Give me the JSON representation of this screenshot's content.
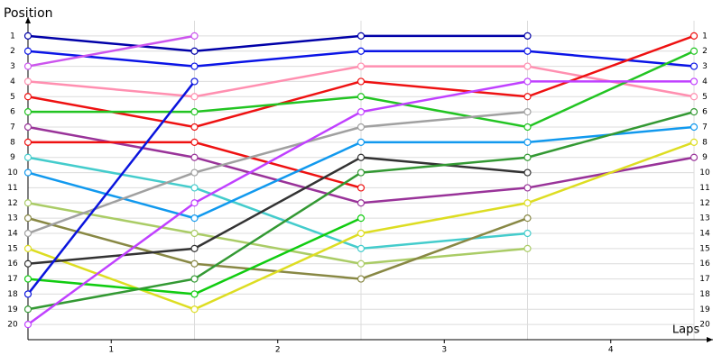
{
  "chart_data": {
    "type": "line",
    "y_label": "Position",
    "x_label": "Laps",
    "x": [
      0,
      1,
      2,
      3,
      4
    ],
    "xlim": [
      0,
      4
    ],
    "xticks": [
      {
        "value": 0.5,
        "label": "1"
      },
      {
        "value": 1.5,
        "label": "2"
      },
      {
        "value": 2.5,
        "label": "3"
      },
      {
        "value": 3.5,
        "label": "4"
      }
    ],
    "ylim": [
      21,
      0
    ],
    "yticks": [
      1,
      2,
      3,
      4,
      5,
      6,
      7,
      8,
      9,
      10,
      11,
      12,
      13,
      14,
      15,
      16,
      17,
      18,
      19,
      20
    ],
    "grid": true,
    "series": [
      {
        "color": "#0000a8",
        "values": [
          1,
          2,
          1,
          1,
          null
        ]
      },
      {
        "color": "#0a14e6",
        "values": [
          2,
          3,
          2,
          2,
          3
        ]
      },
      {
        "color": "#cc55ee",
        "values": [
          3,
          1,
          null,
          null,
          null
        ]
      },
      {
        "color": "#ff8fb0",
        "values": [
          4,
          5,
          3,
          3,
          5
        ]
      },
      {
        "color": "#ee1111",
        "values": [
          5,
          7,
          4,
          5,
          1
        ]
      },
      {
        "color": "#22c422",
        "values": [
          6,
          6,
          5,
          7,
          2
        ]
      },
      {
        "color": "#993399",
        "values": [
          7,
          9,
          12,
          11,
          9
        ]
      },
      {
        "color": "#ee1111",
        "values": [
          8,
          8,
          11,
          null,
          null
        ]
      },
      {
        "color": "#44cccc",
        "values": [
          9,
          11,
          15,
          14,
          null
        ]
      },
      {
        "color": "#1199ee",
        "values": [
          10,
          13,
          8,
          8,
          7
        ]
      },
      {
        "color": "#aacc66",
        "values": [
          12,
          14,
          16,
          15,
          null
        ]
      },
      {
        "color": "#888844",
        "values": [
          13,
          16,
          17,
          13,
          null
        ]
      },
      {
        "color": "#a0a0a0",
        "values": [
          14,
          10,
          7,
          6,
          null
        ]
      },
      {
        "color": "#dddd22",
        "values": [
          15,
          19,
          14,
          12,
          8
        ]
      },
      {
        "color": "#333333",
        "values": [
          16,
          15,
          9,
          10,
          null
        ]
      },
      {
        "color": "#11cc11",
        "values": [
          17,
          18,
          13,
          null,
          null
        ]
      },
      {
        "color": "#0a14dd",
        "values": [
          18,
          4,
          null,
          null,
          null
        ]
      },
      {
        "color": "#339933",
        "values": [
          19,
          17,
          10,
          9,
          6
        ]
      },
      {
        "color": "#c040ff",
        "values": [
          20,
          12,
          6,
          4,
          4
        ]
      }
    ]
  }
}
